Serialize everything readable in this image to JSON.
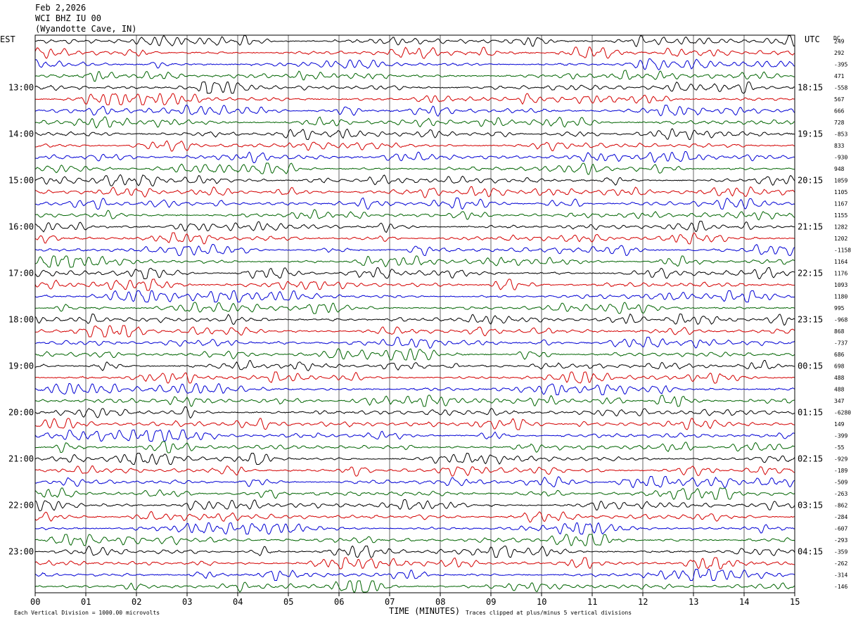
{
  "header": {
    "date": "Feb 2,2026",
    "station": "WCI BHZ IU 00",
    "location": "(Wyandotte Cave, IN)"
  },
  "chart_data": {
    "type": "line",
    "subtype": "helicorder",
    "left_timezone": "EST",
    "right_timezone": "UTC",
    "dc_header": "DC",
    "xlabel": "TIME (MINUTES)",
    "xlim": [
      0,
      15
    ],
    "x_ticks": [
      "00",
      "01",
      "02",
      "03",
      "04",
      "05",
      "06",
      "07",
      "08",
      "09",
      "10",
      "11",
      "12",
      "13",
      "14",
      "15"
    ],
    "left_hour_labels": [
      "13:00",
      "14:00",
      "15:00",
      "16:00",
      "17:00",
      "18:00",
      "19:00",
      "20:00",
      "21:00",
      "22:00",
      "23:00"
    ],
    "right_hour_labels": [
      "18:15",
      "19:15",
      "20:15",
      "21:15",
      "22:15",
      "23:15",
      "00:15",
      "01:15",
      "02:15",
      "03:15",
      "04:15"
    ],
    "trace_count": 48,
    "trace_colors": [
      "#000000",
      "#d40000",
      "#0000d4",
      "#006400"
    ],
    "dc_offsets": [
      "249",
      "292",
      "-395",
      "471",
      "-558",
      "567",
      "666",
      "728",
      "-853",
      "833",
      "-930",
      "948",
      "1059",
      "1105",
      "1167",
      "1155",
      "1282",
      "1202",
      "-1158",
      "1164",
      "1176",
      "1093",
      "1180",
      "995",
      "-968",
      "868",
      "-737",
      "686",
      "698",
      "488",
      "488",
      "347",
      "-6280",
      "149",
      "-399",
      "-55",
      "-929",
      "-189",
      "-509",
      "-263",
      "-862",
      "-284",
      "-607",
      "-293",
      "-359",
      "-262",
      "-314",
      "-146"
    ],
    "grid": true,
    "footer_left": "Each Vertical Division = 1000.00 microvolts",
    "footer_right": "Traces clipped at plus/minus 5 vertical divisions"
  }
}
